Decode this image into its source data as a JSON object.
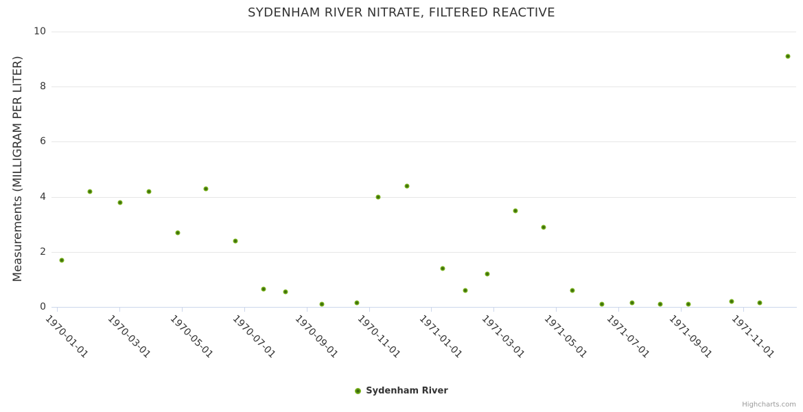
{
  "chart_data": {
    "type": "scatter",
    "title": "SYDENHAM RIVER NITRATE, FILTERED REACTIVE",
    "xlabel": "",
    "ylabel": "Measurements (MILLIGRAM PER LITER)",
    "ylim": [
      0,
      10
    ],
    "yticks": [
      0,
      2,
      4,
      6,
      8,
      10
    ],
    "xticks": [
      "1970-01-01",
      "1970-03-01",
      "1970-05-01",
      "1970-07-01",
      "1970-09-01",
      "1970-11-01",
      "1971-01-01",
      "1971-03-01",
      "1971-05-01",
      "1971-07-01",
      "1971-09-01",
      "1971-11-01"
    ],
    "grid": true,
    "legend_position": "bottom-center",
    "series": [
      {
        "name": "Sydenham River",
        "color": "#7db21e",
        "marker_center_color": "#3c6c0e",
        "points": [
          {
            "x": "1970-01-06",
            "y": 1.7
          },
          {
            "x": "1970-02-03",
            "y": 4.2
          },
          {
            "x": "1970-03-02",
            "y": 3.8
          },
          {
            "x": "1970-03-30",
            "y": 4.2
          },
          {
            "x": "1970-04-28",
            "y": 2.7
          },
          {
            "x": "1970-05-25",
            "y": 4.3
          },
          {
            "x": "1970-06-23",
            "y": 2.4
          },
          {
            "x": "1970-07-20",
            "y": 0.65
          },
          {
            "x": "1970-08-11",
            "y": 0.55
          },
          {
            "x": "1970-09-16",
            "y": 0.1
          },
          {
            "x": "1970-10-20",
            "y": 0.15
          },
          {
            "x": "1970-11-10",
            "y": 4.0
          },
          {
            "x": "1970-12-08",
            "y": 4.4
          },
          {
            "x": "1971-01-12",
            "y": 1.4
          },
          {
            "x": "1971-02-04",
            "y": 0.6
          },
          {
            "x": "1971-02-25",
            "y": 1.2
          },
          {
            "x": "1971-03-22",
            "y": 3.5
          },
          {
            "x": "1971-04-19",
            "y": 2.9
          },
          {
            "x": "1971-05-17",
            "y": 0.6
          },
          {
            "x": "1971-06-15",
            "y": 0.1
          },
          {
            "x": "1971-07-14",
            "y": 0.15
          },
          {
            "x": "1971-08-11",
            "y": 0.1
          },
          {
            "x": "1971-09-08",
            "y": 0.1
          },
          {
            "x": "1971-10-20",
            "y": 0.2
          },
          {
            "x": "1971-11-17",
            "y": 0.15
          },
          {
            "x": "1971-12-14",
            "y": 9.1
          }
        ]
      }
    ]
  },
  "credits": {
    "label": "Highcharts.com"
  }
}
